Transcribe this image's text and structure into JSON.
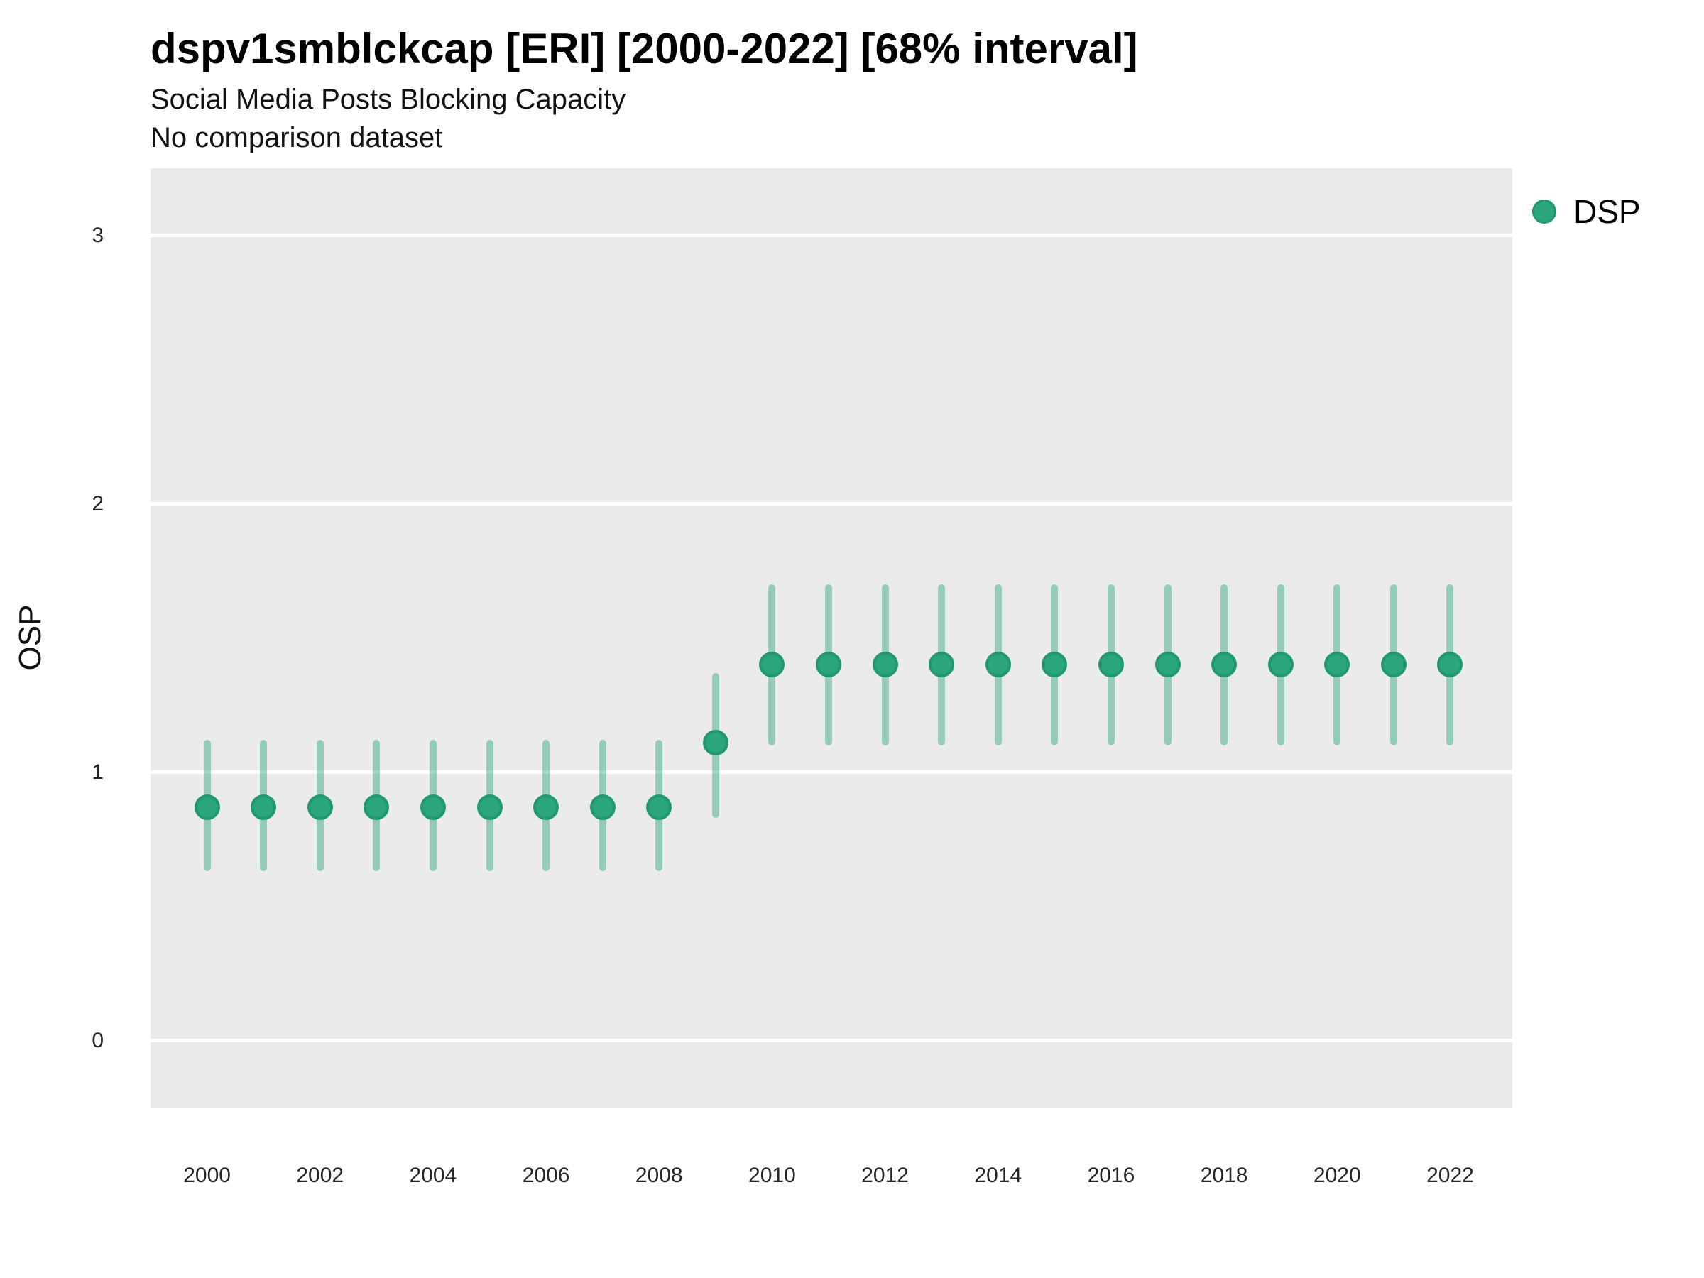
{
  "header": {
    "title": "dspv1smblckcap [ERI] [2000-2022] [68% interval]",
    "subtitle": "Social Media Posts Blocking Capacity",
    "note": "No comparison dataset"
  },
  "legend": {
    "items": [
      {
        "label": "DSP",
        "color": "#2aa57e"
      }
    ]
  },
  "chart_data": {
    "type": "pointrange",
    "title": "dspv1smblckcap [ERI] [2000-2022] [68% interval]",
    "subtitle": "Social Media Posts Blocking Capacity",
    "note": "No comparison dataset",
    "xlabel": "",
    "ylabel": "OSP",
    "legend_position": "right-top",
    "grid": "major-horizontal",
    "panel_bg": "#ebebeb",
    "grid_color": "#ffffff",
    "point_color": "#2aa57e",
    "point_stroke": "#219970",
    "interval_color": "#2aa57e",
    "interval_opacity": 0.45,
    "xlim": [
      1999.0,
      2023.1
    ],
    "ylim": [
      -0.25,
      3.25
    ],
    "yticks": [
      0,
      1,
      2,
      3
    ],
    "xticks": [
      2000,
      2002,
      2004,
      2006,
      2008,
      2010,
      2012,
      2014,
      2016,
      2018,
      2020,
      2022
    ],
    "x": [
      2000,
      2001,
      2002,
      2003,
      2004,
      2005,
      2006,
      2007,
      2008,
      2009,
      2010,
      2011,
      2012,
      2013,
      2014,
      2015,
      2016,
      2017,
      2018,
      2019,
      2020,
      2021,
      2022
    ],
    "series": [
      {
        "name": "DSP",
        "center": [
          0.87,
          0.87,
          0.87,
          0.87,
          0.87,
          0.87,
          0.87,
          0.87,
          0.87,
          1.11,
          1.4,
          1.4,
          1.4,
          1.4,
          1.4,
          1.4,
          1.4,
          1.4,
          1.4,
          1.4,
          1.4,
          1.4,
          1.4
        ],
        "low": [
          0.63,
          0.63,
          0.63,
          0.63,
          0.63,
          0.63,
          0.63,
          0.63,
          0.63,
          0.83,
          1.1,
          1.1,
          1.1,
          1.1,
          1.1,
          1.1,
          1.1,
          1.1,
          1.1,
          1.1,
          1.1,
          1.1,
          1.1
        ],
        "high": [
          1.12,
          1.12,
          1.12,
          1.12,
          1.12,
          1.12,
          1.12,
          1.12,
          1.12,
          1.37,
          1.7,
          1.7,
          1.7,
          1.7,
          1.7,
          1.7,
          1.7,
          1.7,
          1.7,
          1.7,
          1.7,
          1.7,
          1.7
        ]
      }
    ]
  }
}
